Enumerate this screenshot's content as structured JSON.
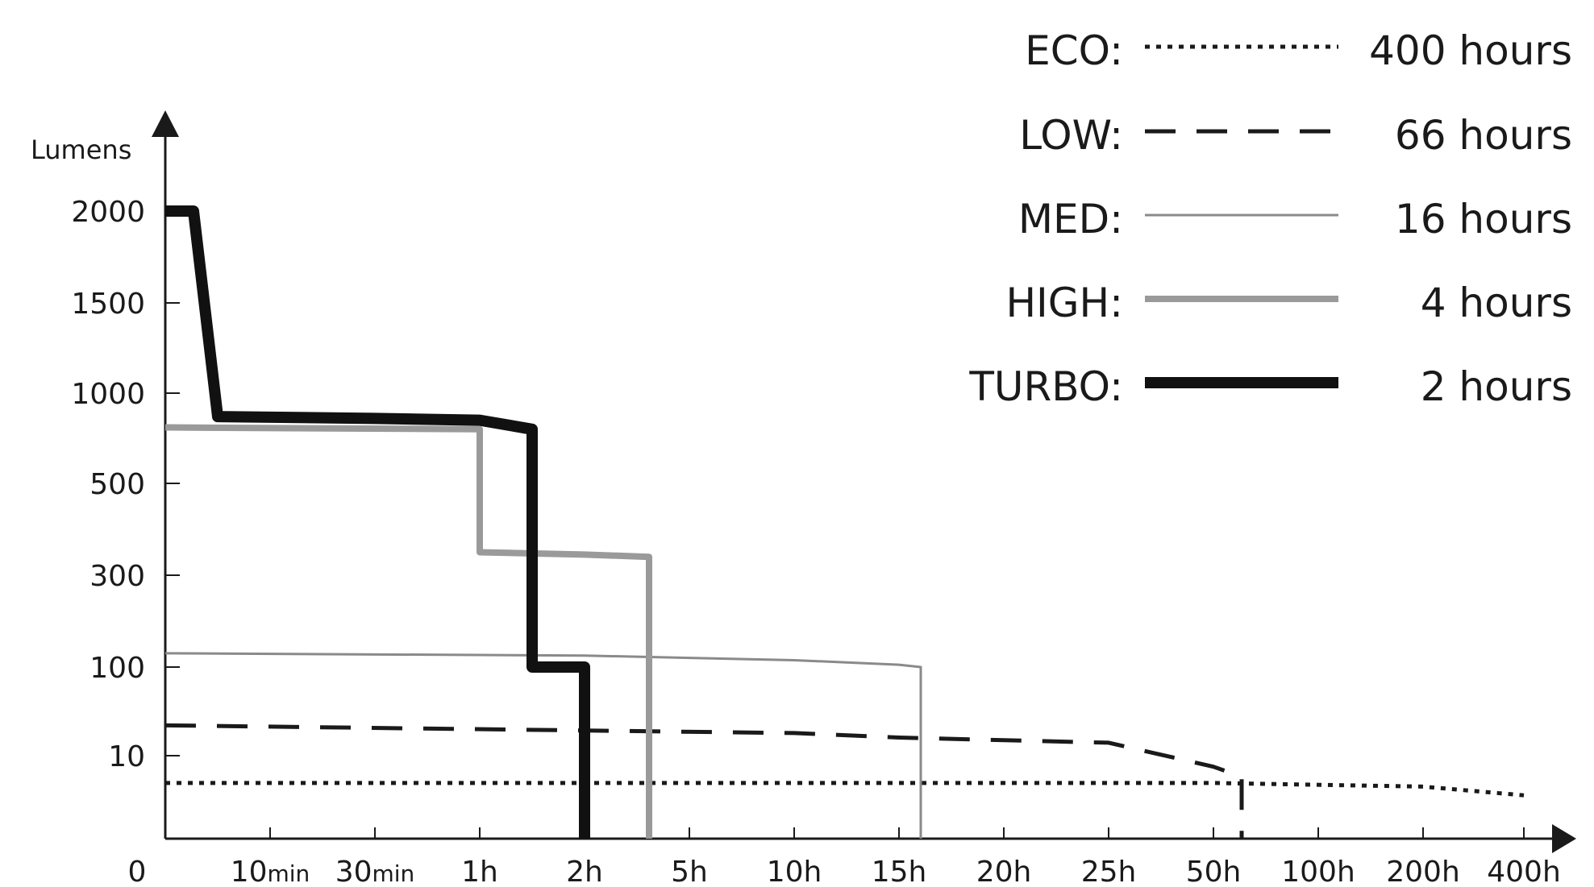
{
  "chart_data": {
    "type": "line",
    "ylabel": "Lumens",
    "x_categories": [
      "0",
      "10min",
      "30min",
      "1h",
      "2h",
      "5h",
      "10h",
      "15h",
      "20h",
      "25h",
      "50h",
      "100h",
      "200h",
      "400h"
    ],
    "y_ticks": [
      "10",
      "100",
      "300",
      "500",
      "1000",
      "1500",
      "2000"
    ],
    "y_zero_label": "0",
    "x_scale": "categorical-nonuniform",
    "y_scale": "categorical-nonuniform",
    "legend_position": "top-right",
    "series": [
      {
        "name": "ECO",
        "legend_label": "ECO:",
        "runtime": "400 hours",
        "style": "dotted",
        "color": "#1a1a1a",
        "points": [
          [
            "0",
            4
          ],
          [
            "2h",
            4
          ],
          [
            "50h",
            4
          ],
          [
            "200h",
            3.5
          ],
          [
            "400h",
            2.5
          ]
        ]
      },
      {
        "name": "LOW",
        "legend_label": "LOW:",
        "runtime": "66 hours",
        "style": "dashed",
        "color": "#1a1a1a",
        "points": [
          [
            "0",
            22
          ],
          [
            "10h",
            18
          ],
          [
            "15h",
            16
          ],
          [
            "25h",
            14
          ],
          [
            "50h",
            7
          ],
          [
            "66h",
            5
          ],
          [
            "66h",
            0
          ]
        ]
      },
      {
        "name": "MED",
        "legend_label": "MED:",
        "runtime": "16 hours",
        "style": "thin-solid",
        "color": "#8a8a8a",
        "points": [
          [
            "0",
            130
          ],
          [
            "2h",
            125
          ],
          [
            "5h",
            120
          ],
          [
            "10h",
            115
          ],
          [
            "15h",
            105
          ],
          [
            "16h",
            100
          ],
          [
            "16h",
            0
          ]
        ]
      },
      {
        "name": "HIGH",
        "legend_label": "HIGH:",
        "runtime": "4 hours",
        "style": "thick-gray",
        "color": "#9a9a9a",
        "points": [
          [
            "0",
            810
          ],
          [
            "1h",
            800
          ],
          [
            "1h",
            350
          ],
          [
            "2h",
            345
          ],
          [
            "4h",
            340
          ],
          [
            "4h",
            0
          ]
        ]
      },
      {
        "name": "TURBO",
        "legend_label": "TURBO:",
        "runtime": "2 hours",
        "style": "thick-black",
        "color": "#111111",
        "points": [
          [
            "0",
            2000
          ],
          [
            "0.5min",
            2000
          ],
          [
            "5min",
            870
          ],
          [
            "30min",
            860
          ],
          [
            "1h",
            850
          ],
          [
            "1.5h",
            800
          ],
          [
            "1.5h",
            100
          ],
          [
            "2h",
            100
          ],
          [
            "2h",
            0
          ]
        ]
      }
    ]
  }
}
